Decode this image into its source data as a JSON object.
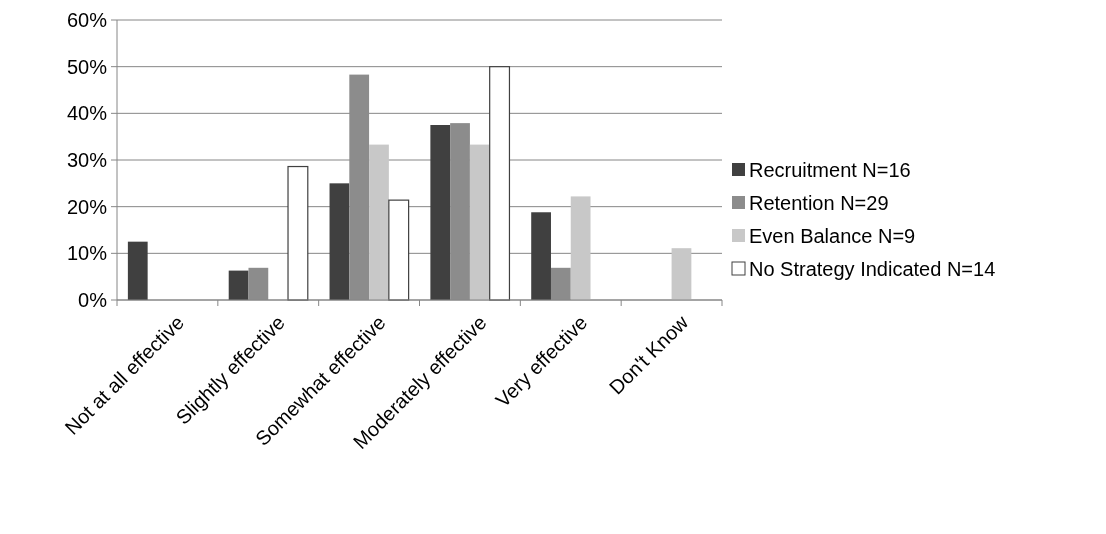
{
  "chart_data": {
    "type": "bar",
    "categories": [
      "Not at all effective",
      "Slightly effective",
      "Somewhat effective",
      "Moderately effective",
      "Very effective",
      "Don't Know"
    ],
    "series": [
      {
        "name": "Recruitment  N=16",
        "color": "#404040",
        "values": [
          12.5,
          6.3,
          25,
          37.5,
          18.8,
          0
        ]
      },
      {
        "name": "Retention  N=29",
        "color": "#8c8c8c",
        "values": [
          0,
          6.9,
          48.3,
          37.9,
          6.9,
          0
        ]
      },
      {
        "name": "Even Balance  N=9",
        "color": "#c8c8c8",
        "values": [
          0,
          0,
          33.3,
          33.3,
          22.2,
          11.1
        ]
      },
      {
        "name": "No Strategy Indicated  N=14",
        "color": "#ffffff",
        "values": [
          0,
          28.6,
          21.4,
          50,
          0,
          0
        ]
      }
    ],
    "ylim": [
      0,
      60
    ],
    "yticks": [
      {
        "value": 0,
        "label": "0%"
      },
      {
        "value": 10,
        "label": "10%"
      },
      {
        "value": 20,
        "label": "20%"
      },
      {
        "value": 30,
        "label": "30%"
      },
      {
        "value": 40,
        "label": "40%"
      },
      {
        "value": 50,
        "label": "50%"
      },
      {
        "value": 60,
        "label": "60%"
      }
    ],
    "grid": "y",
    "legend": "right"
  }
}
